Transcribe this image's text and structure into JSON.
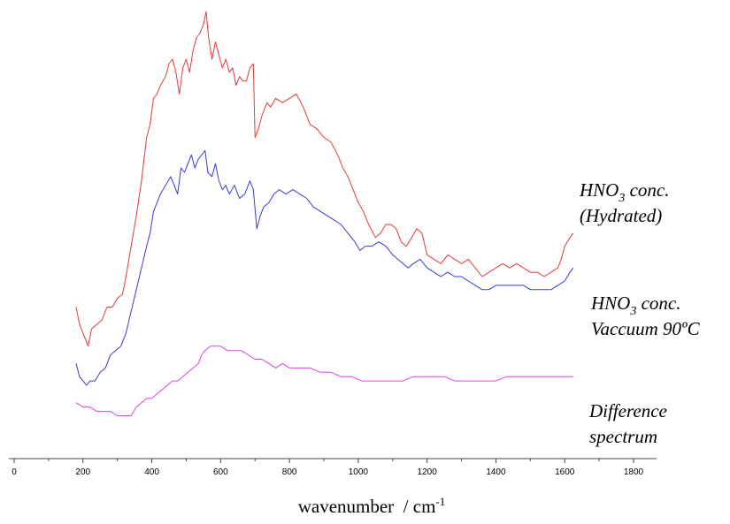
{
  "chart_data": {
    "type": "line",
    "xlabel": "wavenumber  / cm",
    "xlabel_sup": "-1",
    "xlim": [
      0,
      1900
    ],
    "x_ticks": [
      "0",
      "200",
      "400",
      "600",
      "800",
      "1000",
      "1200",
      "1400",
      "1600",
      "1800"
    ],
    "y_axis_shown": false,
    "grid": false,
    "series": [
      {
        "label_lines": [
          {
            "main": "HNO",
            "sub": "3",
            "rest": " conc."
          },
          {
            "main": "(Hydrated)"
          }
        ],
        "color": "#e53a3a",
        "points": [
          [
            180,
            0.69
          ],
          [
            190,
            0.73
          ],
          [
            200,
            0.75
          ],
          [
            215,
            0.78
          ],
          [
            225,
            0.74
          ],
          [
            240,
            0.73
          ],
          [
            255,
            0.72
          ],
          [
            270,
            0.69
          ],
          [
            285,
            0.69
          ],
          [
            300,
            0.67
          ],
          [
            315,
            0.66
          ],
          [
            325,
            0.62
          ],
          [
            340,
            0.55
          ],
          [
            355,
            0.48
          ],
          [
            370,
            0.4
          ],
          [
            385,
            0.3
          ],
          [
            395,
            0.27
          ],
          [
            405,
            0.21
          ],
          [
            415,
            0.2
          ],
          [
            425,
            0.18
          ],
          [
            440,
            0.16
          ],
          [
            450,
            0.13
          ],
          [
            460,
            0.12
          ],
          [
            470,
            0.15
          ],
          [
            480,
            0.2
          ],
          [
            490,
            0.14
          ],
          [
            500,
            0.12
          ],
          [
            510,
            0.15
          ],
          [
            520,
            0.1
          ],
          [
            530,
            0.07
          ],
          [
            540,
            0.06
          ],
          [
            550,
            0.04
          ],
          [
            558,
            0.01
          ],
          [
            565,
            0.07
          ],
          [
            575,
            0.12
          ],
          [
            585,
            0.08
          ],
          [
            595,
            0.11
          ],
          [
            605,
            0.14
          ],
          [
            615,
            0.12
          ],
          [
            625,
            0.15
          ],
          [
            635,
            0.14
          ],
          [
            645,
            0.18
          ],
          [
            655,
            0.16
          ],
          [
            665,
            0.17
          ],
          [
            675,
            0.17
          ],
          [
            685,
            0.14
          ],
          [
            695,
            0.13
          ],
          [
            700,
            0.3
          ],
          [
            710,
            0.28
          ],
          [
            720,
            0.25
          ],
          [
            735,
            0.22
          ],
          [
            745,
            0.23
          ],
          [
            760,
            0.21
          ],
          [
            780,
            0.22
          ],
          [
            800,
            0.21
          ],
          [
            820,
            0.2
          ],
          [
            840,
            0.23
          ],
          [
            860,
            0.27
          ],
          [
            880,
            0.28
          ],
          [
            900,
            0.3
          ],
          [
            920,
            0.31
          ],
          [
            940,
            0.34
          ],
          [
            955,
            0.37
          ],
          [
            970,
            0.39
          ],
          [
            985,
            0.42
          ],
          [
            1000,
            0.45
          ],
          [
            1015,
            0.47
          ],
          [
            1030,
            0.5
          ],
          [
            1050,
            0.53
          ],
          [
            1065,
            0.52
          ],
          [
            1080,
            0.5
          ],
          [
            1095,
            0.5
          ],
          [
            1110,
            0.51
          ],
          [
            1125,
            0.54
          ],
          [
            1140,
            0.55
          ],
          [
            1155,
            0.53
          ],
          [
            1170,
            0.51
          ],
          [
            1185,
            0.52
          ],
          [
            1200,
            0.57
          ],
          [
            1220,
            0.58
          ],
          [
            1240,
            0.59
          ],
          [
            1260,
            0.57
          ],
          [
            1280,
            0.58
          ],
          [
            1300,
            0.59
          ],
          [
            1320,
            0.58
          ],
          [
            1340,
            0.6
          ],
          [
            1360,
            0.62
          ],
          [
            1380,
            0.61
          ],
          [
            1400,
            0.6
          ],
          [
            1420,
            0.59
          ],
          [
            1440,
            0.6
          ],
          [
            1460,
            0.59
          ],
          [
            1480,
            0.6
          ],
          [
            1500,
            0.61
          ],
          [
            1520,
            0.61
          ],
          [
            1540,
            0.62
          ],
          [
            1560,
            0.61
          ],
          [
            1580,
            0.6
          ],
          [
            1590,
            0.58
          ],
          [
            1600,
            0.55
          ],
          [
            1615,
            0.53
          ],
          [
            1625,
            0.52
          ]
        ]
      },
      {
        "label_lines": [
          {
            "main": "HNO",
            "sub": "3",
            "rest": " conc."
          },
          {
            "main": "Vaccuum 90ºC"
          }
        ],
        "color": "#3a3adb",
        "points": [
          [
            180,
            0.82
          ],
          [
            190,
            0.85
          ],
          [
            200,
            0.86
          ],
          [
            210,
            0.87
          ],
          [
            220,
            0.86
          ],
          [
            235,
            0.86
          ],
          [
            250,
            0.84
          ],
          [
            265,
            0.83
          ],
          [
            280,
            0.8
          ],
          [
            295,
            0.79
          ],
          [
            310,
            0.78
          ],
          [
            325,
            0.75
          ],
          [
            340,
            0.7
          ],
          [
            355,
            0.65
          ],
          [
            370,
            0.6
          ],
          [
            385,
            0.55
          ],
          [
            395,
            0.52
          ],
          [
            405,
            0.47
          ],
          [
            415,
            0.45
          ],
          [
            425,
            0.43
          ],
          [
            440,
            0.41
          ],
          [
            455,
            0.39
          ],
          [
            465,
            0.41
          ],
          [
            475,
            0.43
          ],
          [
            485,
            0.37
          ],
          [
            495,
            0.38
          ],
          [
            505,
            0.36
          ],
          [
            515,
            0.34
          ],
          [
            525,
            0.37
          ],
          [
            535,
            0.35
          ],
          [
            545,
            0.34
          ],
          [
            555,
            0.33
          ],
          [
            563,
            0.38
          ],
          [
            575,
            0.39
          ],
          [
            585,
            0.36
          ],
          [
            595,
            0.4
          ],
          [
            605,
            0.42
          ],
          [
            615,
            0.41
          ],
          [
            625,
            0.43
          ],
          [
            640,
            0.41
          ],
          [
            655,
            0.44
          ],
          [
            670,
            0.43
          ],
          [
            685,
            0.4
          ],
          [
            695,
            0.42
          ],
          [
            705,
            0.51
          ],
          [
            715,
            0.48
          ],
          [
            725,
            0.46
          ],
          [
            740,
            0.45
          ],
          [
            755,
            0.43
          ],
          [
            770,
            0.42
          ],
          [
            790,
            0.43
          ],
          [
            810,
            0.42
          ],
          [
            830,
            0.43
          ],
          [
            850,
            0.44
          ],
          [
            870,
            0.46
          ],
          [
            890,
            0.47
          ],
          [
            910,
            0.48
          ],
          [
            930,
            0.49
          ],
          [
            950,
            0.5
          ],
          [
            970,
            0.52
          ],
          [
            990,
            0.54
          ],
          [
            1005,
            0.56
          ],
          [
            1020,
            0.55
          ],
          [
            1040,
            0.55
          ],
          [
            1060,
            0.54
          ],
          [
            1080,
            0.55
          ],
          [
            1100,
            0.57
          ],
          [
            1115,
            0.58
          ],
          [
            1130,
            0.59
          ],
          [
            1145,
            0.6
          ],
          [
            1160,
            0.59
          ],
          [
            1180,
            0.58
          ],
          [
            1200,
            0.6
          ],
          [
            1220,
            0.61
          ],
          [
            1240,
            0.62
          ],
          [
            1260,
            0.61
          ],
          [
            1280,
            0.62
          ],
          [
            1300,
            0.62
          ],
          [
            1320,
            0.63
          ],
          [
            1340,
            0.64
          ],
          [
            1360,
            0.65
          ],
          [
            1380,
            0.65
          ],
          [
            1400,
            0.64
          ],
          [
            1420,
            0.64
          ],
          [
            1440,
            0.64
          ],
          [
            1460,
            0.64
          ],
          [
            1480,
            0.64
          ],
          [
            1500,
            0.65
          ],
          [
            1520,
            0.65
          ],
          [
            1540,
            0.65
          ],
          [
            1560,
            0.65
          ],
          [
            1580,
            0.64
          ],
          [
            1600,
            0.63
          ],
          [
            1615,
            0.61
          ],
          [
            1625,
            0.6
          ]
        ]
      },
      {
        "label_lines": [
          {
            "main": "Difference"
          },
          {
            "main": "spectrum"
          }
        ],
        "color": "#e040e0",
        "points": [
          [
            180,
            0.91
          ],
          [
            200,
            0.92
          ],
          [
            220,
            0.92
          ],
          [
            240,
            0.93
          ],
          [
            260,
            0.93
          ],
          [
            280,
            0.93
          ],
          [
            300,
            0.94
          ],
          [
            320,
            0.94
          ],
          [
            340,
            0.94
          ],
          [
            355,
            0.92
          ],
          [
            370,
            0.91
          ],
          [
            385,
            0.9
          ],
          [
            400,
            0.9
          ],
          [
            415,
            0.89
          ],
          [
            430,
            0.88
          ],
          [
            445,
            0.87
          ],
          [
            460,
            0.86
          ],
          [
            475,
            0.86
          ],
          [
            490,
            0.85
          ],
          [
            505,
            0.84
          ],
          [
            520,
            0.83
          ],
          [
            535,
            0.82
          ],
          [
            545,
            0.8
          ],
          [
            555,
            0.79
          ],
          [
            570,
            0.78
          ],
          [
            585,
            0.78
          ],
          [
            600,
            0.78
          ],
          [
            620,
            0.79
          ],
          [
            640,
            0.79
          ],
          [
            660,
            0.79
          ],
          [
            680,
            0.8
          ],
          [
            700,
            0.81
          ],
          [
            720,
            0.81
          ],
          [
            740,
            0.82
          ],
          [
            760,
            0.83
          ],
          [
            780,
            0.82
          ],
          [
            800,
            0.83
          ],
          [
            830,
            0.83
          ],
          [
            860,
            0.83
          ],
          [
            890,
            0.84
          ],
          [
            920,
            0.84
          ],
          [
            950,
            0.85
          ],
          [
            980,
            0.85
          ],
          [
            1010,
            0.86
          ],
          [
            1040,
            0.86
          ],
          [
            1070,
            0.86
          ],
          [
            1100,
            0.86
          ],
          [
            1130,
            0.86
          ],
          [
            1160,
            0.85
          ],
          [
            1190,
            0.85
          ],
          [
            1220,
            0.85
          ],
          [
            1250,
            0.85
          ],
          [
            1280,
            0.86
          ],
          [
            1310,
            0.86
          ],
          [
            1340,
            0.86
          ],
          [
            1370,
            0.86
          ],
          [
            1400,
            0.86
          ],
          [
            1430,
            0.85
          ],
          [
            1460,
            0.85
          ],
          [
            1490,
            0.85
          ],
          [
            1520,
            0.85
          ],
          [
            1550,
            0.85
          ],
          [
            1580,
            0.85
          ],
          [
            1610,
            0.85
          ],
          [
            1625,
            0.85
          ]
        ]
      }
    ]
  }
}
